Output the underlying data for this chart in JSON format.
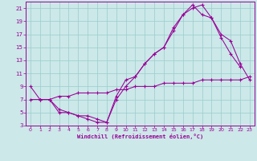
{
  "xlabel": "Windchill (Refroidissement éolien,°C)",
  "bg_color": "#cce8e8",
  "line_color": "#990099",
  "grid_color": "#99cccc",
  "xlim": [
    -0.5,
    23.5
  ],
  "ylim": [
    3,
    22
  ],
  "xticks": [
    0,
    1,
    2,
    3,
    4,
    5,
    6,
    7,
    8,
    9,
    10,
    11,
    12,
    13,
    14,
    15,
    16,
    17,
    18,
    19,
    20,
    21,
    22,
    23
  ],
  "yticks": [
    3,
    5,
    7,
    9,
    11,
    13,
    15,
    17,
    19,
    21
  ],
  "line1_x": [
    0,
    1,
    2,
    3,
    4,
    5,
    6,
    7,
    8,
    9,
    10,
    11,
    12,
    13,
    14,
    15,
    16,
    17,
    18,
    19,
    20,
    21,
    22,
    23
  ],
  "line1_y": [
    9,
    7,
    7,
    5,
    5,
    4.5,
    4,
    3.5,
    3.5,
    7.5,
    10,
    10.5,
    12.5,
    14,
    15,
    18,
    20,
    21.5,
    20,
    19.5,
    17,
    16,
    12.5,
    10
  ],
  "line2_x": [
    1,
    2,
    3,
    4,
    5,
    6,
    7,
    8,
    9,
    10,
    11,
    12,
    13,
    14,
    15,
    16,
    17,
    18,
    19,
    20,
    21,
    22
  ],
  "line2_y": [
    7,
    7,
    5.5,
    5,
    4.5,
    4.5,
    4,
    3.5,
    7,
    9,
    10.5,
    12.5,
    14,
    15,
    17.5,
    20,
    21,
    21.5,
    19.5,
    16.5,
    14,
    12
  ],
  "line3_x": [
    0,
    1,
    2,
    3,
    4,
    5,
    6,
    7,
    8,
    9,
    10,
    11,
    12,
    13,
    14,
    15,
    16,
    17,
    18,
    19,
    20,
    21,
    22,
    23
  ],
  "line3_y": [
    7,
    7,
    7,
    7.5,
    7.5,
    8,
    8,
    8,
    8,
    8.5,
    8.5,
    9,
    9,
    9,
    9.5,
    9.5,
    9.5,
    9.5,
    10,
    10,
    10,
    10,
    10,
    10.5
  ]
}
